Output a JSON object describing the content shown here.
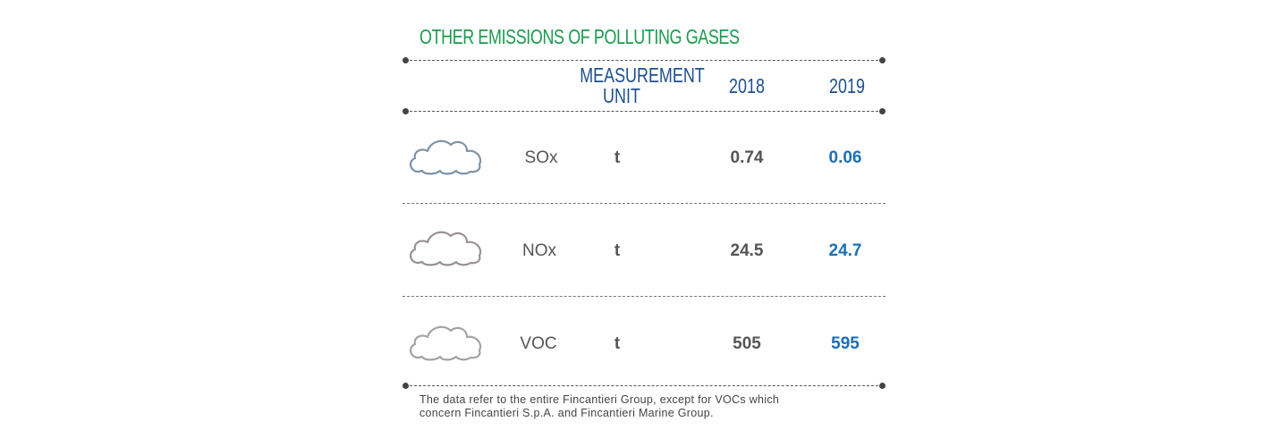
{
  "title": "OTHER EMISSIONS OF POLLUTING GASES",
  "header": {
    "unit_line1": "MEASUREMENT",
    "unit_line2": "UNIT",
    "year1": "2018",
    "year2": "2019"
  },
  "rows": [
    {
      "gas": "SOx",
      "unit": "t",
      "v2018": "0.74",
      "v2019": "0.06",
      "icon": "cloud-icon",
      "icon_color": "#7c93a6"
    },
    {
      "gas": "NOx",
      "unit": "t",
      "v2018": "24.5",
      "v2019": "24.7",
      "icon": "cloud-icon",
      "icon_color": "#9a9096"
    },
    {
      "gas": "VOC",
      "unit": "t",
      "v2018": "505",
      "v2019": "595",
      "icon": "cloud-icon",
      "icon_color": "#a3a3a3"
    }
  ],
  "note": {
    "line1": "The data refer to the entire Fincantieri Group, except for VOCs which",
    "line2": "concern Fincantieri S.p.A. and Fincantieri Marine Group."
  },
  "colors": {
    "title": "#1a9b4e",
    "header": "#1e4f8c",
    "value_2019": "#1b6fb5",
    "text": "#555555"
  }
}
